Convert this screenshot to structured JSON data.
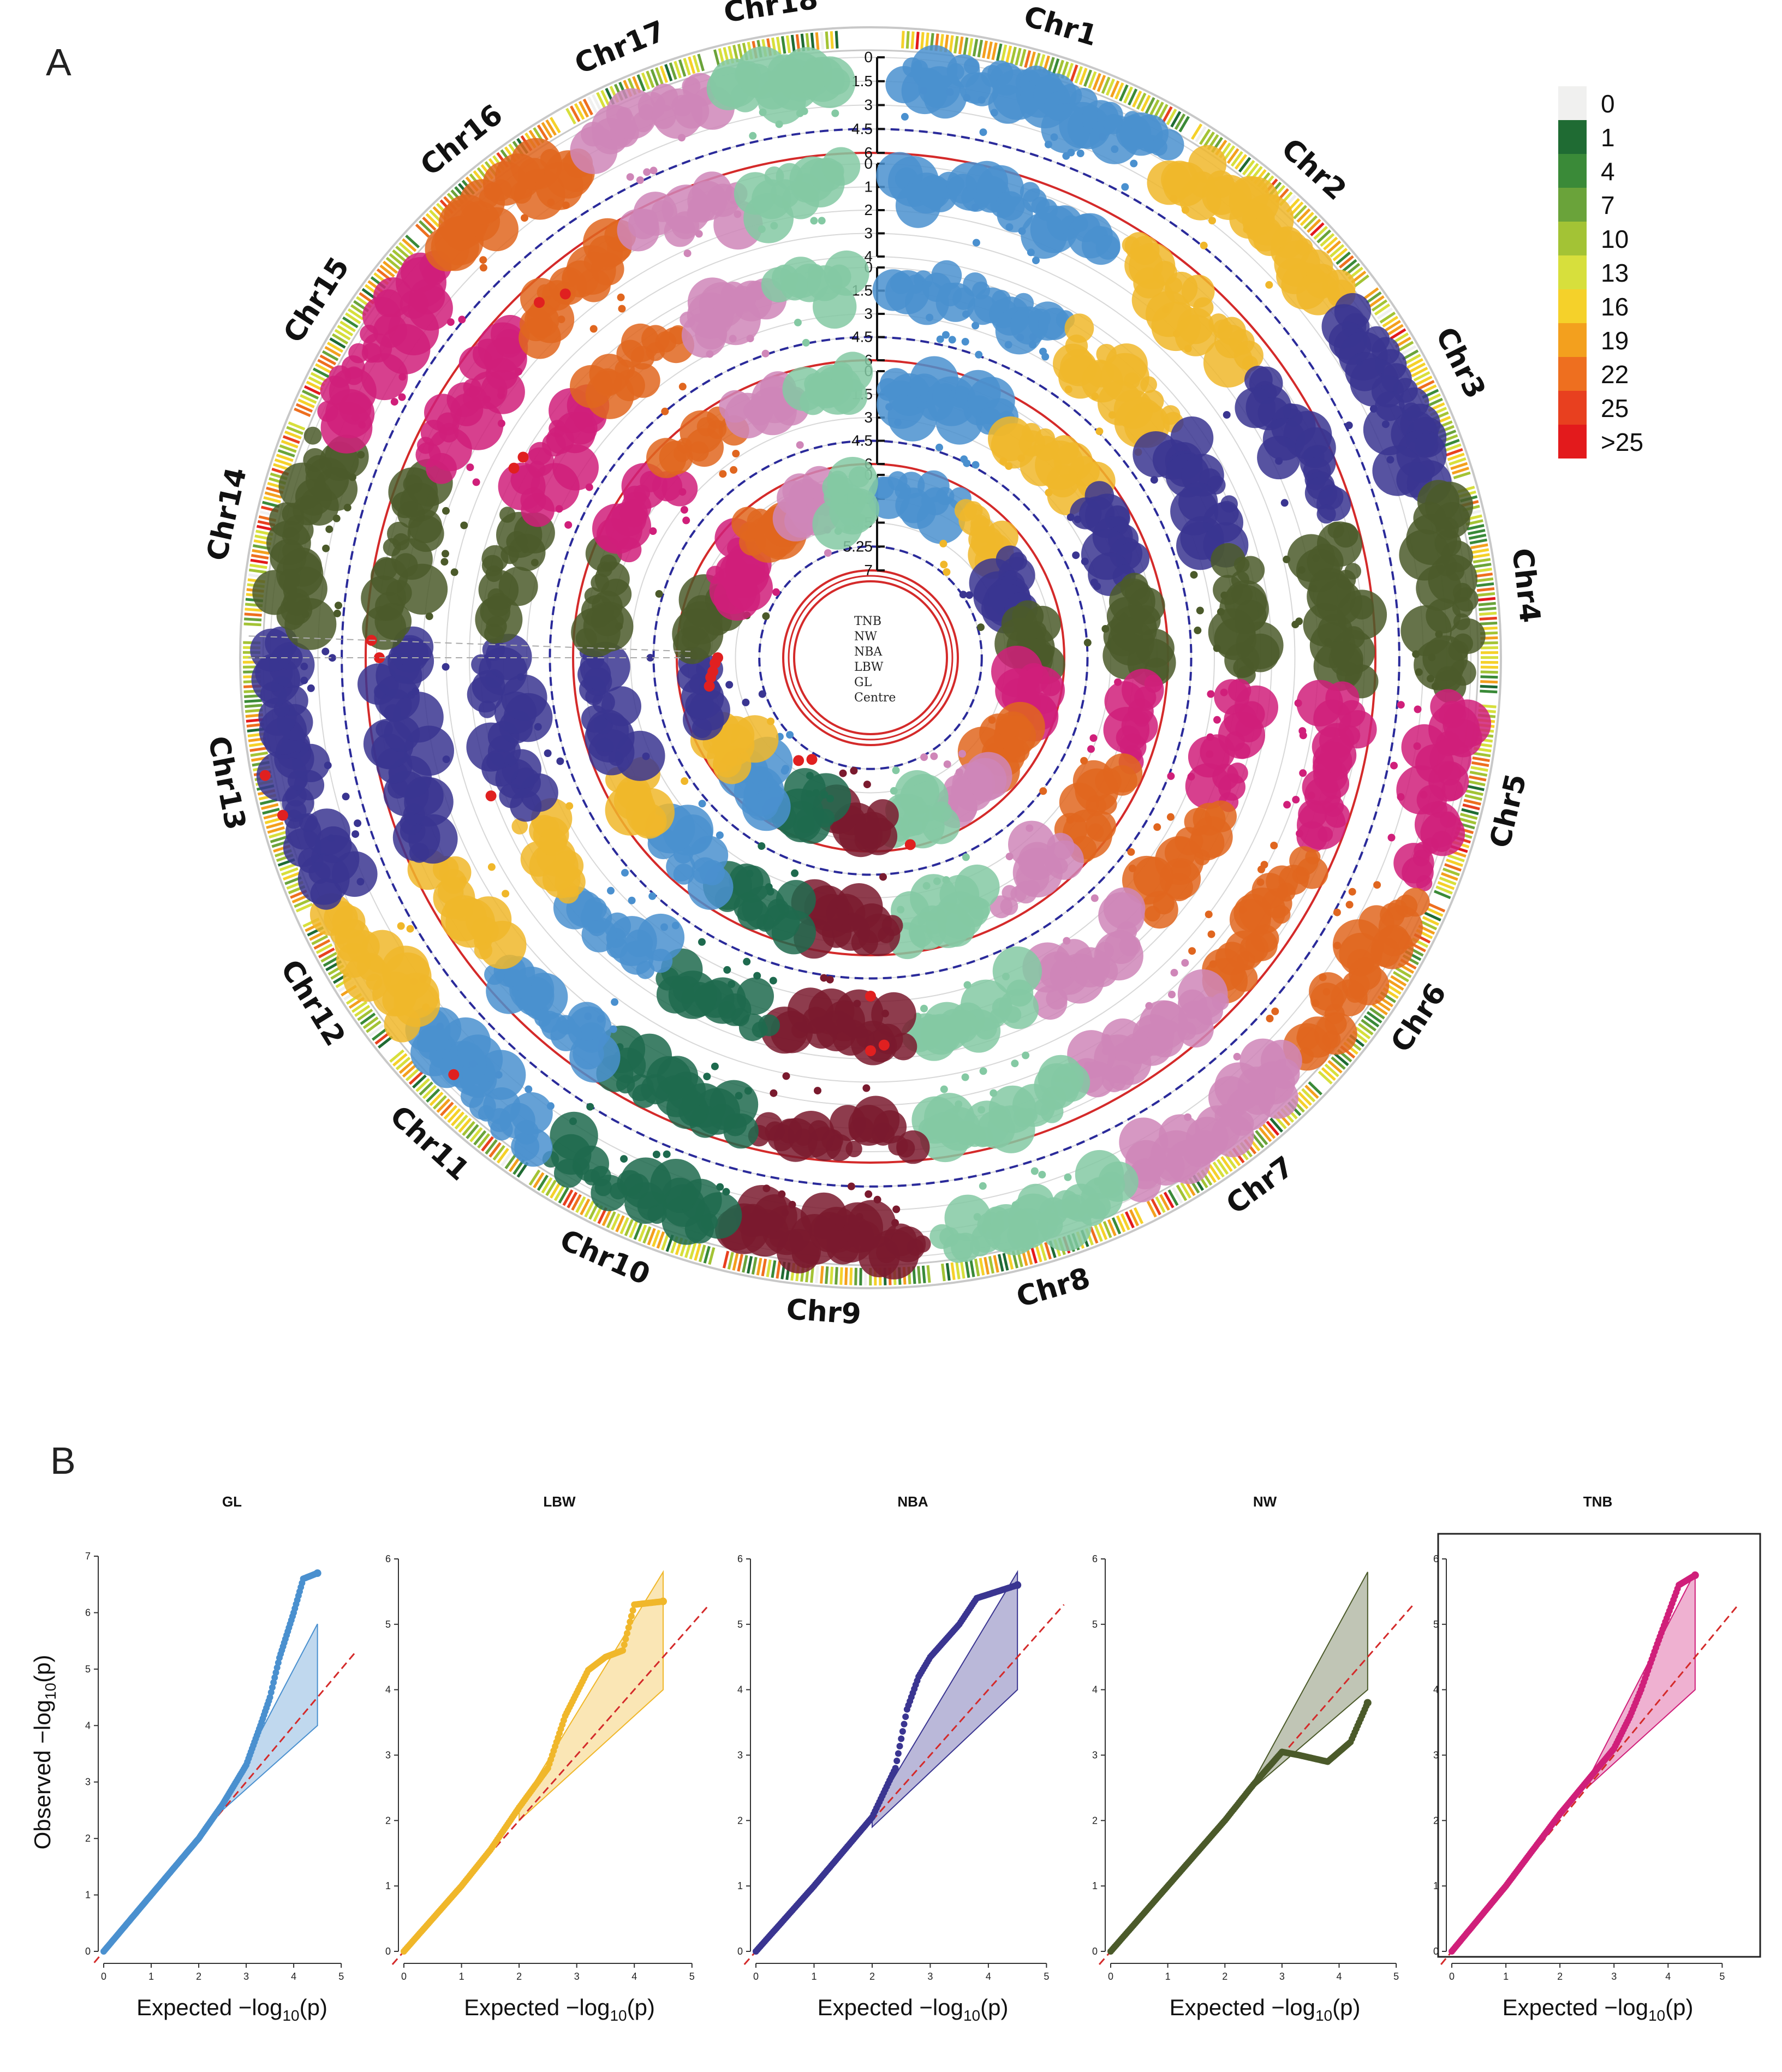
{
  "panel_a_label": "A",
  "panel_b_label": "B",
  "heatmap_legend": [
    {
      "label": "0",
      "color": "#f0f0ef"
    },
    {
      "label": "1",
      "color": "#1f6b33"
    },
    {
      "label": "4",
      "color": "#3a8a38"
    },
    {
      "label": "7",
      "color": "#6aa33a"
    },
    {
      "label": "10",
      "color": "#a3c335"
    },
    {
      "label": "13",
      "color": "#d7df3c"
    },
    {
      "label": "16",
      "color": "#f5d12a"
    },
    {
      "label": "19",
      "color": "#f3a01e"
    },
    {
      "label": "22",
      "color": "#ee6f1f"
    },
    {
      "label": "25",
      "color": "#e8401f"
    },
    {
      "label": ">25",
      "color": "#e31a1c"
    }
  ],
  "center_labels": [
    {
      "text": "TNB",
      "color": "#222222"
    },
    {
      "text": "NW",
      "color": "#222222"
    },
    {
      "text": "NBA",
      "color": "#222222"
    },
    {
      "text": "LBW",
      "color": "#222222"
    },
    {
      "text": "GL",
      "color": "#222222"
    },
    {
      "text": "Centre",
      "color": "#d42a2a"
    }
  ],
  "chart_data": [
    {
      "type": "scatter",
      "subtype": "circular-manhattan",
      "title": "",
      "chromosomes": [
        "Chr1",
        "Chr2",
        "Chr3",
        "Chr4",
        "Chr5",
        "Chr6",
        "Chr7",
        "Chr8",
        "Chr9",
        "Chr10",
        "Chr11",
        "Chr12",
        "Chr13",
        "Chr14",
        "Chr15",
        "Chr16",
        "Chr17",
        "Chr18"
      ],
      "chromosome_colors": [
        "#4a90cf",
        "#f0b72a",
        "#3a3591",
        "#4b5a2a",
        "#d01f7a",
        "#e0661f",
        "#cf86b8",
        "#84c9a3",
        "#7a1a2e",
        "#1e6a4e",
        "#4a90cf",
        "#f0b72a",
        "#3a3591",
        "#4b5a2a",
        "#d01f7a",
        "#e0661f",
        "#cf86b8",
        "#84c9a3"
      ],
      "rings": [
        {
          "trait": "TNB",
          "ticks": [
            "0",
            "1.5",
            "3",
            "4.5",
            "6"
          ],
          "threshold_dashed": 4.5,
          "threshold_solid": 6
        },
        {
          "trait": "NW",
          "ticks": [
            "0",
            "1",
            "2",
            "3",
            "4"
          ],
          "threshold_dashed": null,
          "threshold_solid": null
        },
        {
          "trait": "NBA",
          "ticks": [
            "0",
            "1.5",
            "3",
            "4.5",
            "6"
          ],
          "threshold_dashed": 4.5,
          "threshold_solid": 6
        },
        {
          "trait": "LBW",
          "ticks": [
            "0",
            "1.5",
            "3",
            "4.5",
            "6"
          ],
          "threshold_dashed": 4.5,
          "threshold_solid": 6
        },
        {
          "trait": "GL",
          "ticks": [
            "0",
            "1.75",
            "3.5",
            "5.25",
            "7"
          ],
          "threshold_dashed": 5.25,
          "threshold_solid": 7
        }
      ],
      "density_legend": [
        "0",
        "1",
        "4",
        "7",
        "10",
        "13",
        "16",
        "19",
        "22",
        "25",
        ">25"
      ]
    },
    {
      "type": "scatter",
      "subtype": "qq",
      "panels": [
        {
          "title": "GL",
          "color": "#4a90cf",
          "ylim": [
            0,
            7
          ],
          "yticks": [
            "0",
            "1",
            "2",
            "3",
            "4",
            "5",
            "6",
            "7"
          ],
          "xticks": [
            "0",
            "1",
            "2",
            "3",
            "4",
            "5"
          ],
          "observed_curve": [
            [
              0,
              0
            ],
            [
              1,
              1.0
            ],
            [
              2,
              2.0
            ],
            [
              2.5,
              2.6
            ],
            [
              3.0,
              3.3
            ],
            [
              3.3,
              4.0
            ],
            [
              3.5,
              4.5
            ],
            [
              3.7,
              5.2
            ],
            [
              4.0,
              6.0
            ],
            [
              4.2,
              6.6
            ],
            [
              4.5,
              6.7
            ]
          ],
          "ci_upper": [
            [
              2.5,
              2.6
            ],
            [
              4.5,
              5.8
            ]
          ],
          "ci_lower": [
            [
              2.5,
              2.5
            ],
            [
              4.5,
              4.0
            ]
          ]
        },
        {
          "title": "LBW",
          "color": "#f0b72a",
          "ylim": [
            0,
            6
          ],
          "yticks": [
            "0",
            "1",
            "2",
            "3",
            "4",
            "5",
            "6"
          ],
          "xticks": [
            "0",
            "1",
            "2",
            "3",
            "4",
            "5"
          ],
          "observed_curve": [
            [
              0,
              0
            ],
            [
              1,
              1.0
            ],
            [
              1.5,
              1.55
            ],
            [
              2.0,
              2.2
            ],
            [
              2.5,
              2.8
            ],
            [
              2.8,
              3.6
            ],
            [
              3.2,
              4.3
            ],
            [
              3.5,
              4.5
            ],
            [
              3.8,
              4.6
            ],
            [
              4.0,
              5.3
            ],
            [
              4.5,
              5.35
            ]
          ],
          "ci_upper": [
            [
              2.0,
              2.2
            ],
            [
              4.5,
              5.8
            ]
          ],
          "ci_lower": [
            [
              2.0,
              2.0
            ],
            [
              4.5,
              4.0
            ]
          ]
        },
        {
          "title": "NBA",
          "color": "#3a3591",
          "ylim": [
            0,
            6
          ],
          "yticks": [
            "0",
            "1",
            "2",
            "3",
            "4",
            "5",
            "6"
          ],
          "xticks": [
            "0",
            "1",
            "2",
            "3",
            "4",
            "5"
          ],
          "observed_curve": [
            [
              0,
              0
            ],
            [
              1,
              1.0
            ],
            [
              2,
              2.05
            ],
            [
              2.4,
              2.8
            ],
            [
              2.6,
              3.7
            ],
            [
              2.8,
              4.2
            ],
            [
              3.0,
              4.5
            ],
            [
              3.5,
              5.0
            ],
            [
              3.8,
              5.4
            ],
            [
              4.5,
              5.6
            ]
          ],
          "ci_upper": [
            [
              2.0,
              2.1
            ],
            [
              4.5,
              5.8
            ]
          ],
          "ci_lower": [
            [
              2.0,
              1.9
            ],
            [
              4.5,
              4.0
            ]
          ]
        },
        {
          "title": "NW",
          "color": "#4b5a2a",
          "ylim": [
            0,
            6
          ],
          "yticks": [
            "0",
            "1",
            "2",
            "3",
            "4",
            "5",
            "6"
          ],
          "xticks": [
            "0",
            "1",
            "2",
            "3",
            "4",
            "5"
          ],
          "observed_curve": [
            [
              0,
              0
            ],
            [
              1,
              1.0
            ],
            [
              2,
              2.0
            ],
            [
              2.5,
              2.55
            ],
            [
              3.0,
              3.05
            ],
            [
              3.3,
              3.0
            ],
            [
              3.8,
              2.9
            ],
            [
              4.2,
              3.2
            ],
            [
              4.5,
              3.8
            ]
          ],
          "ci_upper": [
            [
              2.5,
              2.6
            ],
            [
              4.5,
              5.8
            ]
          ],
          "ci_lower": [
            [
              2.5,
              2.5
            ],
            [
              4.5,
              4.0
            ]
          ]
        },
        {
          "title": "TNB",
          "color": "#d01f7a",
          "ylim": [
            0,
            6
          ],
          "yticks": [
            "0",
            "1",
            "2",
            "3",
            "4",
            "5",
            "6"
          ],
          "xticks": [
            "0",
            "1",
            "2",
            "3",
            "4",
            "5"
          ],
          "observed_curve": [
            [
              0,
              0
            ],
            [
              1,
              1.0
            ],
            [
              2,
              2.1
            ],
            [
              2.5,
              2.6
            ],
            [
              3.0,
              3.1
            ],
            [
              3.3,
              3.6
            ],
            [
              3.5,
              4.0
            ],
            [
              3.8,
              4.7
            ],
            [
              4.2,
              5.6
            ],
            [
              4.5,
              5.75
            ]
          ],
          "ci_upper": [
            [
              2.5,
              2.6
            ],
            [
              4.5,
              5.8
            ]
          ],
          "ci_lower": [
            [
              2.5,
              2.5
            ],
            [
              4.5,
              4.0
            ]
          ]
        }
      ],
      "xlabel": "Expected −log₁₀(p)",
      "ylabel": "Observed −log₁₀(p)"
    }
  ],
  "qq_xlabel_prefix": "Expected −log",
  "qq_ylabel_prefix": "Observed −log",
  "qq_sub": "10",
  "qq_suffix": "(p)"
}
